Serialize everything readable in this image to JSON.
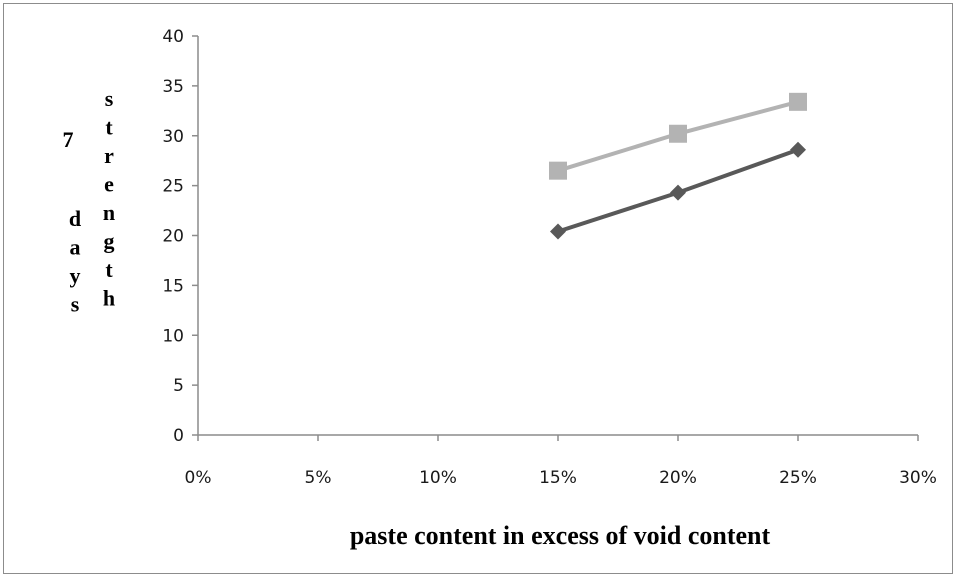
{
  "chart_data": {
    "type": "line",
    "title": "",
    "xlabel": "paste content in excess of void content",
    "ylabel_parts": [
      "7",
      "days",
      "strength"
    ],
    "x_ticks": [
      "0%",
      "5%",
      "10%",
      "15%",
      "20%",
      "25%",
      "30%"
    ],
    "y_ticks": [
      "0",
      "5",
      "10",
      "15",
      "20",
      "25",
      "30",
      "35",
      "40"
    ],
    "xlim": [
      0,
      30
    ],
    "ylim": [
      0,
      40
    ],
    "grid": false,
    "legend": "none",
    "series": [
      {
        "marker": "square",
        "color": "#b3b3b3",
        "x": [
          15,
          20,
          25
        ],
        "y": [
          26.5,
          30.2,
          33.4
        ]
      },
      {
        "marker": "diamond",
        "color": "#595959",
        "x": [
          15,
          20,
          25
        ],
        "y": [
          20.4,
          24.3,
          28.6
        ]
      }
    ]
  }
}
